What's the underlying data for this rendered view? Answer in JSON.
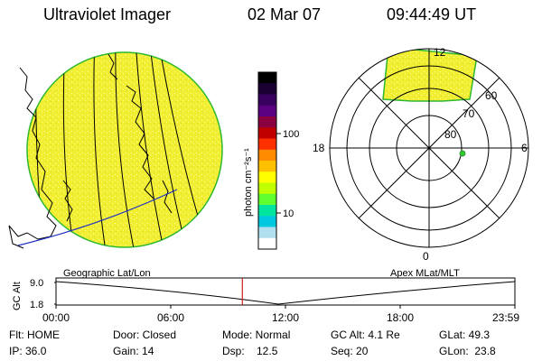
{
  "header": {
    "title": "Ultraviolet Imager",
    "date": "02 Mar 07",
    "time": "09:44:49 UT"
  },
  "colorbar": {
    "label": "photon cm⁻²s⁻¹",
    "ticks": [
      "100",
      "10"
    ],
    "colors": [
      "#000000",
      "#1a0033",
      "#3a0060",
      "#5a0080",
      "#8a0040",
      "#c00000",
      "#ff3000",
      "#ff8c00",
      "#ffc000",
      "#ffff00",
      "#c0ff00",
      "#60ff30",
      "#00e6a0",
      "#00c8e0",
      "#b0e0f0",
      "#ffffff"
    ]
  },
  "polar": {
    "lat_labels": [
      "60",
      "70",
      "80"
    ],
    "mlt_labels": {
      "top": "12",
      "bottom": "0",
      "left": "18",
      "right": "6"
    }
  },
  "timeline": {
    "y_axis_label": "GC Alt",
    "y_ticks": [
      "9.0",
      "1.8"
    ],
    "left_label": "Geographic Lat/Lon",
    "right_label": "Apex MLat/MLT",
    "time_ticks": [
      "00:00",
      "06:00",
      "12:00",
      "18:00",
      "23:59"
    ],
    "current_marker_hours": 9.7469
  },
  "status": {
    "row1": {
      "flt": "Flt: HOME",
      "door": "Door: Closed",
      "mode": "Mode: Normal",
      "gcalt": "GC Alt: 4.1 Re",
      "glat": "GLat: 49.3"
    },
    "row2": {
      "ip": "IP: 36.0",
      "gain": "Gain: 14",
      "dsp": "Dsp:    12.5",
      "seq": "Seq: 20",
      "glon": "GLon:  23.8"
    }
  },
  "colors": {
    "image_fill": "#f2ef32",
    "limb": "#2eb82e",
    "orbit": "#2030c0",
    "marker": "#cc2222",
    "point": "#33cc33"
  }
}
